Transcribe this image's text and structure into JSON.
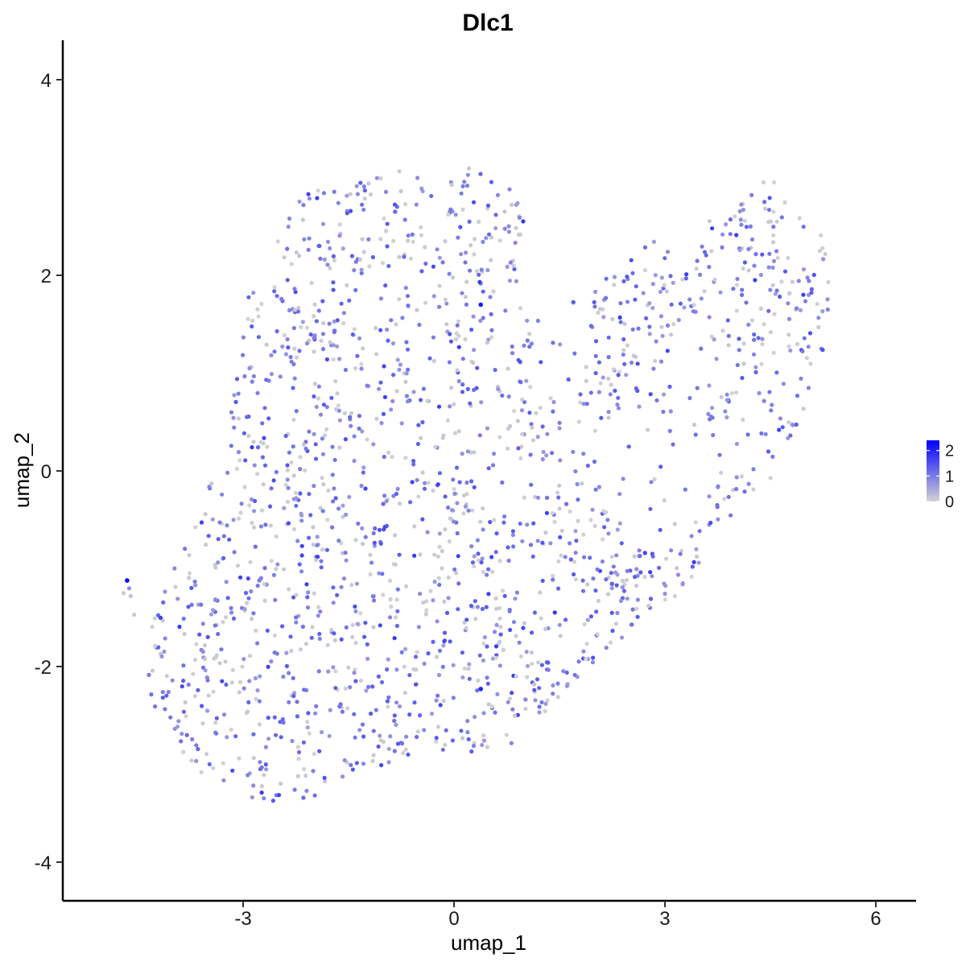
{
  "chart_data": {
    "type": "scatter",
    "title": "Dlc1",
    "xlabel": "umap_1",
    "ylabel": "umap_2",
    "xlim": [
      -6.0,
      6.6
    ],
    "ylim": [
      -4.3,
      4.4
    ],
    "x_ticks": [
      -3,
      0,
      3,
      6
    ],
    "x_tick_labels": [
      "-3",
      "0",
      "3",
      "6"
    ],
    "y_ticks": [
      -4,
      -2,
      0,
      2,
      4
    ],
    "y_tick_labels": [
      "-4",
      "-2",
      "0",
      "2",
      "4"
    ],
    "grid": false,
    "legend": {
      "placement": "right",
      "type": "continuous colorbar",
      "tick_values": [
        0,
        1,
        2
      ],
      "tick_labels": [
        "0",
        "1",
        "2"
      ],
      "range": [
        0,
        2.4
      ]
    },
    "color_low": "#d3d3d3",
    "color_high": "#0000ff",
    "highlighted_points": [
      {
        "x": -4.65,
        "y": -1.12,
        "expr": 2.4
      },
      {
        "x": 0.38,
        "y": 1.7,
        "expr": 2.1
      },
      {
        "x": 0.38,
        "y": -2.23,
        "expr": 2.0
      }
    ],
    "generated_region": {
      "description_note": "",
      "n_points": 1900,
      "x_range": [
        -4.6,
        5.4
      ],
      "y_range": [
        -3.5,
        3.1
      ]
    }
  }
}
